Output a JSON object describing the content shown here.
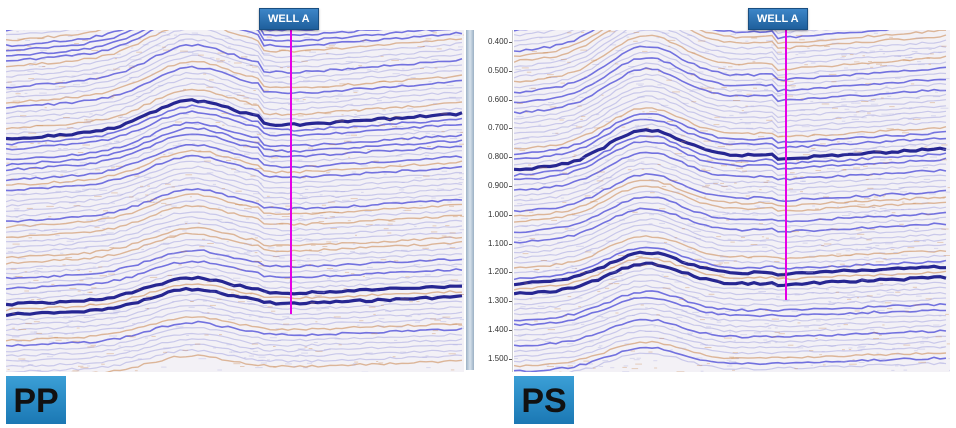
{
  "panels": {
    "pp": {
      "label": "PP",
      "well_label": "WELL A",
      "well_line_color": "#e600e6",
      "trace_seed": 11
    },
    "ps": {
      "label": "PS",
      "well_label": "WELL A",
      "well_line_color": "#e600e6",
      "trace_seed": 29
    }
  },
  "time_axis": {
    "ticks": [
      "0.400",
      "0.500",
      "0.600",
      "0.700",
      "0.800",
      "0.900",
      "1.000",
      "1.100",
      "1.200",
      "1.300",
      "1.400",
      "1.500"
    ]
  },
  "colors": {
    "background": "#f3f1f6",
    "strong_reflector": "#1a1a8c",
    "blue_reflector": "#3b3bd6",
    "orange_reflector": "#c8844a",
    "light_reflector": "#a5a5e0",
    "label_box": "#2a8bc8",
    "well_tag": "#2d74b6"
  }
}
